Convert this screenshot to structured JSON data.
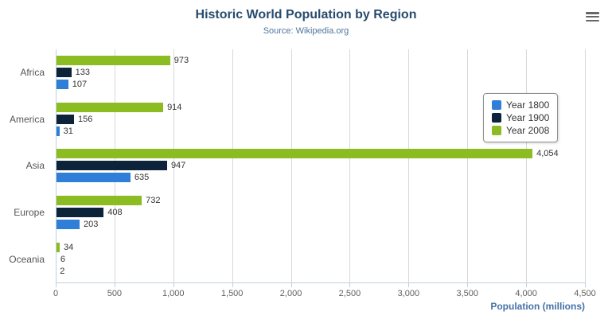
{
  "header": {
    "title": "Historic World Population by Region",
    "subtitle": "Source: Wikipedia.org"
  },
  "icons": {
    "export_menu": "hamburger-menu"
  },
  "chart_data": {
    "type": "bar",
    "orientation": "horizontal",
    "title": "Historic World Population by Region",
    "subtitle": "Source: Wikipedia.org",
    "categories": [
      "Africa",
      "America",
      "Asia",
      "Europe",
      "Oceania"
    ],
    "series": [
      {
        "name": "Year 1800",
        "color": "#2f7ed8",
        "values": [
          107,
          31,
          635,
          203,
          2
        ]
      },
      {
        "name": "Year 1900",
        "color": "#0d233a",
        "values": [
          133,
          156,
          947,
          408,
          6
        ]
      },
      {
        "name": "Year 2008",
        "color": "#8bbc21",
        "values": [
          973,
          914,
          4054,
          732,
          34
        ]
      }
    ],
    "bar_order_top_to_bottom": [
      "Year 2008",
      "Year 1900",
      "Year 1800"
    ],
    "xlabel": "Population (millions)",
    "ylabel": "",
    "xlim": [
      0,
      4500
    ],
    "xticks": [
      0,
      500,
      1000,
      1500,
      2000,
      2500,
      3000,
      3500,
      4000,
      4500
    ],
    "tick_labels": [
      "0",
      "500",
      "1,000",
      "1,500",
      "2,000",
      "2,500",
      "3,000",
      "3,500",
      "4,000",
      "4,500"
    ],
    "grid": true,
    "legend_position": "right",
    "data_labels": true
  }
}
